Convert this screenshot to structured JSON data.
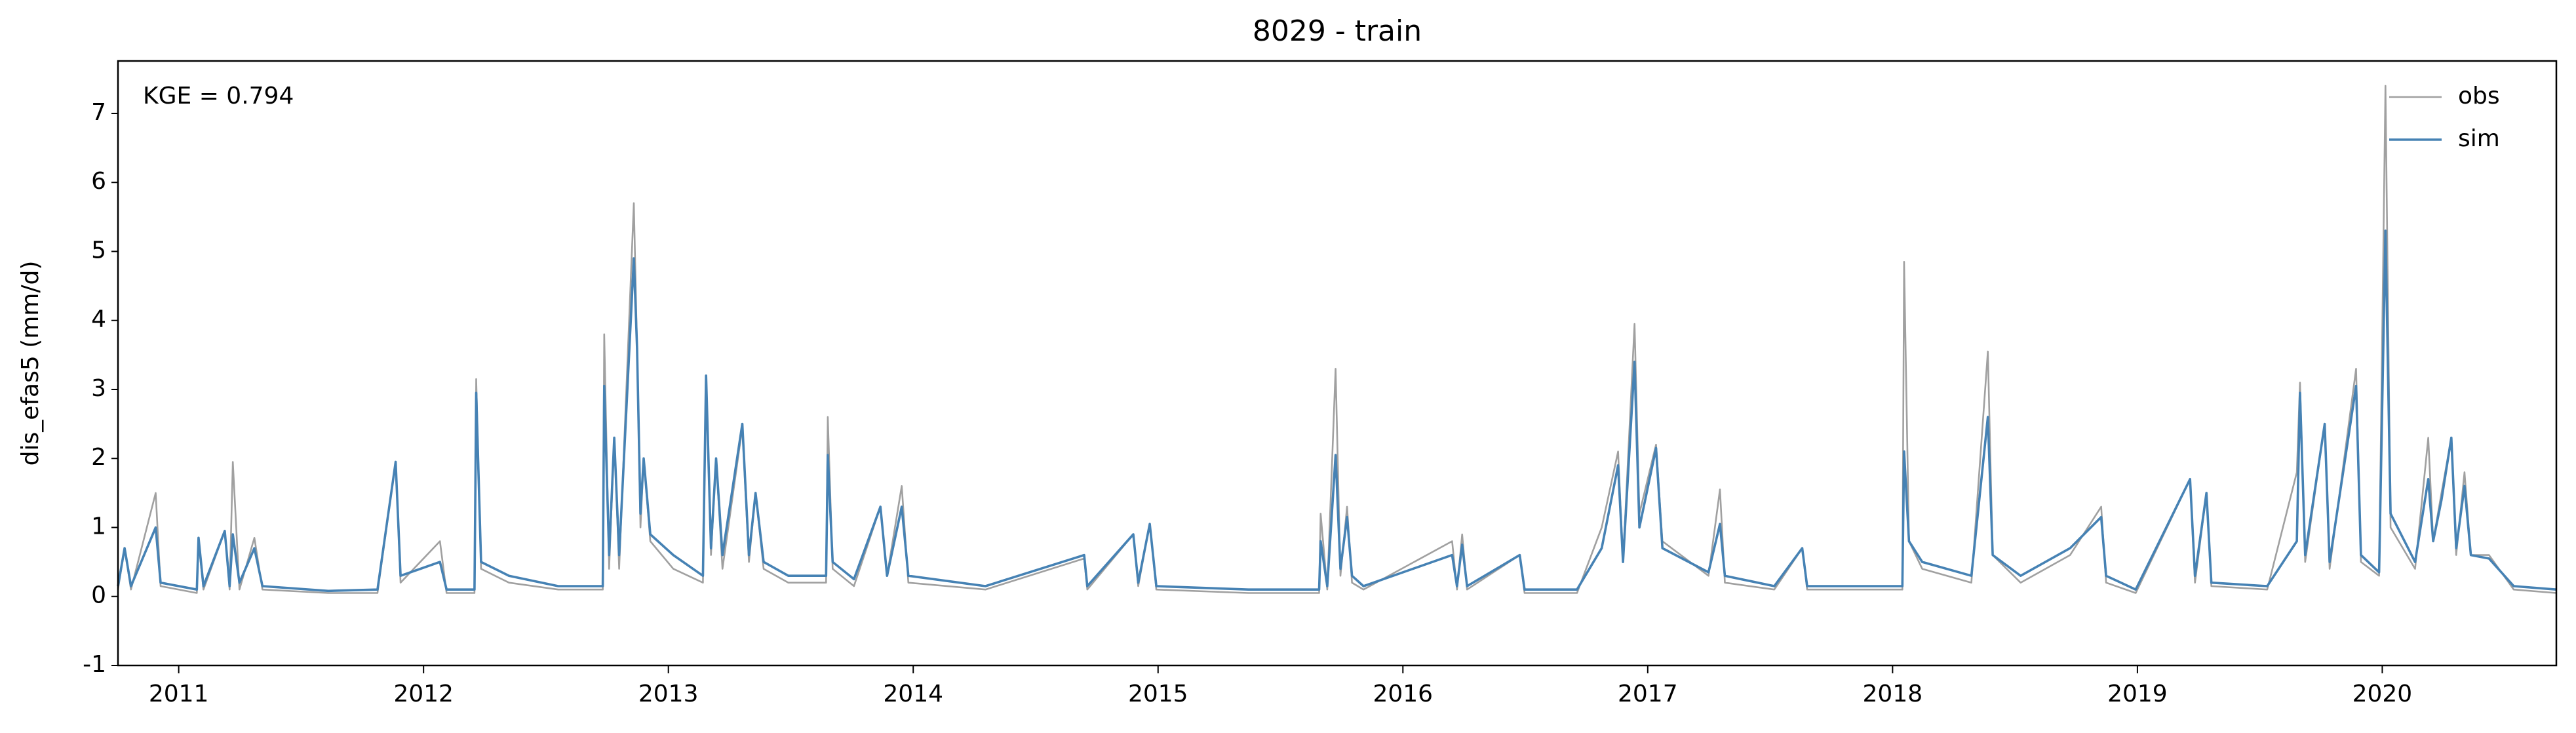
{
  "chart_data": {
    "type": "line",
    "title": "8029 - train",
    "ylabel": "dis_efas5 (mm/d)",
    "annotation": "KGE = 0.794",
    "x": [
      2010.752,
      2010.779,
      2010.805,
      2010.906,
      2010.926,
      2011.074,
      2011.081,
      2011.101,
      2011.188,
      2011.208,
      2011.221,
      2011.248,
      2011.309,
      2011.342,
      2011.611,
      2011.812,
      2011.886,
      2011.906,
      2012.067,
      2012.094,
      2012.208,
      2012.215,
      2012.235,
      2012.349,
      2012.55,
      2012.732,
      2012.738,
      2012.758,
      2012.779,
      2012.799,
      2012.859,
      2012.872,
      2012.886,
      2012.899,
      2012.926,
      2013.02,
      2013.141,
      2013.154,
      2013.174,
      2013.195,
      2013.221,
      2013.302,
      2013.329,
      2013.356,
      2013.389,
      2013.49,
      2013.644,
      2013.651,
      2013.671,
      2013.758,
      2013.866,
      2013.893,
      2013.953,
      2013.98,
      2014.295,
      2014.698,
      2014.711,
      2014.899,
      2014.919,
      2014.966,
      2014.993,
      2015.369,
      2015.658,
      2015.664,
      2015.691,
      2015.725,
      2015.745,
      2015.772,
      2015.792,
      2015.839,
      2016.201,
      2016.221,
      2016.242,
      2016.262,
      2016.477,
      2016.497,
      2016.711,
      2016.812,
      2016.879,
      2016.899,
      2016.946,
      2016.966,
      2017.034,
      2017.06,
      2017.248,
      2017.295,
      2017.315,
      2017.517,
      2017.631,
      2017.651,
      2018.04,
      2018.047,
      2018.067,
      2018.121,
      2018.322,
      2018.389,
      2018.409,
      2018.523,
      2018.725,
      2018.852,
      2018.872,
      2018.993,
      2019.215,
      2019.235,
      2019.282,
      2019.302,
      2019.53,
      2019.651,
      2019.664,
      2019.685,
      2019.765,
      2019.785,
      2019.893,
      2019.913,
      2019.987,
      2020.013,
      2020.034,
      2020.134,
      2020.188,
      2020.208,
      2020.242,
      2020.282,
      2020.302,
      2020.336,
      2020.362,
      2020.436,
      2020.537,
      2020.711
    ],
    "series": [
      {
        "name": "obs",
        "color": "#a0a0a0",
        "values": [
          0.1,
          0.7,
          0.1,
          1.5,
          0.15,
          0.05,
          0.8,
          0.1,
          0.95,
          0.1,
          1.95,
          0.1,
          0.85,
          0.1,
          0.05,
          0.05,
          1.95,
          0.2,
          0.8,
          0.05,
          0.05,
          3.15,
          0.4,
          0.2,
          0.1,
          0.1,
          3.8,
          0.4,
          2.3,
          0.4,
          5.7,
          3.6,
          1.0,
          2.0,
          0.8,
          0.4,
          0.2,
          3.2,
          0.6,
          2.0,
          0.4,
          2.45,
          0.5,
          1.5,
          0.4,
          0.2,
          0.2,
          2.6,
          0.4,
          0.15,
          1.3,
          0.3,
          1.6,
          0.2,
          0.1,
          0.55,
          0.1,
          0.9,
          0.15,
          1.05,
          0.1,
          0.05,
          0.05,
          1.2,
          0.1,
          3.3,
          0.3,
          1.3,
          0.2,
          0.1,
          0.8,
          0.1,
          0.9,
          0.1,
          0.6,
          0.05,
          0.05,
          1.0,
          2.1,
          0.5,
          3.95,
          1.2,
          2.2,
          0.8,
          0.3,
          1.55,
          0.2,
          0.1,
          0.7,
          0.1,
          0.1,
          4.85,
          0.8,
          0.4,
          0.2,
          3.55,
          0.6,
          0.2,
          0.6,
          1.3,
          0.2,
          0.05,
          1.7,
          0.2,
          1.5,
          0.15,
          0.1,
          1.8,
          3.1,
          0.5,
          2.5,
          0.4,
          3.3,
          0.5,
          0.3,
          7.4,
          1.0,
          0.4,
          2.3,
          0.8,
          1.5,
          2.3,
          0.6,
          1.8,
          0.6,
          0.6,
          0.1,
          0.05
        ]
      },
      {
        "name": "sim",
        "color": "#4682b4",
        "values": [
          0.15,
          0.7,
          0.15,
          1.0,
          0.2,
          0.1,
          0.85,
          0.15,
          0.95,
          0.15,
          0.9,
          0.2,
          0.7,
          0.15,
          0.08,
          0.1,
          1.95,
          0.3,
          0.5,
          0.1,
          0.1,
          2.95,
          0.5,
          0.3,
          0.15,
          0.15,
          3.05,
          0.6,
          2.3,
          0.6,
          4.9,
          3.6,
          1.2,
          2.0,
          0.9,
          0.6,
          0.3,
          3.2,
          0.7,
          2.0,
          0.6,
          2.5,
          0.6,
          1.5,
          0.5,
          0.3,
          0.3,
          2.05,
          0.5,
          0.25,
          1.3,
          0.3,
          1.3,
          0.3,
          0.15,
          0.6,
          0.15,
          0.9,
          0.2,
          1.05,
          0.15,
          0.1,
          0.1,
          0.8,
          0.15,
          2.05,
          0.4,
          1.15,
          0.3,
          0.15,
          0.6,
          0.15,
          0.75,
          0.15,
          0.6,
          0.1,
          0.1,
          0.7,
          1.9,
          0.5,
          3.4,
          1.0,
          2.15,
          0.7,
          0.35,
          1.05,
          0.3,
          0.15,
          0.7,
          0.15,
          0.15,
          2.1,
          0.8,
          0.5,
          0.3,
          2.6,
          0.6,
          0.3,
          0.7,
          1.15,
          0.3,
          0.1,
          1.7,
          0.3,
          1.5,
          0.2,
          0.15,
          0.8,
          2.95,
          0.6,
          2.5,
          0.5,
          3.05,
          0.6,
          0.35,
          5.3,
          1.2,
          0.5,
          1.7,
          0.8,
          1.4,
          2.3,
          0.7,
          1.6,
          0.6,
          0.55,
          0.15,
          0.1
        ]
      }
    ],
    "xlim": [
      2010.752,
      2020.711
    ],
    "xticks": [
      2011,
      2012,
      2013,
      2014,
      2015,
      2016,
      2017,
      2018,
      2019,
      2020
    ],
    "ylim": [
      -1,
      7.76
    ],
    "yticks": [
      -1,
      0,
      1,
      2,
      3,
      4,
      5,
      6,
      7
    ],
    "legend": "upper right"
  }
}
